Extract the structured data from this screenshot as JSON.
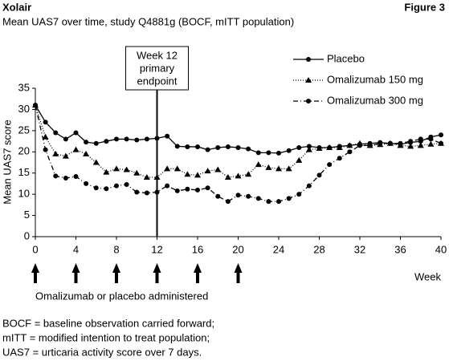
{
  "header": {
    "left": "Xolair",
    "right": "Figure 3"
  },
  "chart_data": {
    "type": "line",
    "title": "Mean UAS7 over time, study Q4881g (BOCF, mITT population)",
    "x_label": "Week",
    "y_label": "Mean UAS7 score",
    "x": [
      0,
      1,
      2,
      3,
      4,
      5,
      6,
      7,
      8,
      9,
      10,
      11,
      12,
      13,
      14,
      15,
      16,
      17,
      18,
      19,
      20,
      21,
      22,
      23,
      24,
      25,
      26,
      27,
      28,
      29,
      30,
      31,
      32,
      33,
      34,
      35,
      36,
      37,
      38,
      39,
      40
    ],
    "series": [
      {
        "name": "Placebo",
        "color": "#000000",
        "line_style": "solid",
        "marker": "circle",
        "values": [
          31,
          27,
          24.5,
          23,
          24.5,
          22.3,
          22,
          22.5,
          23,
          23,
          22.8,
          23,
          23.2,
          23.7,
          21.3,
          21.2,
          21.2,
          20.5,
          21,
          21.2,
          21,
          20.7,
          19.8,
          19.8,
          19.7,
          20.3,
          21,
          21.3,
          21,
          21,
          21.3,
          21.5,
          21.8,
          22,
          22.2,
          22,
          21.8,
          22.2,
          22.5,
          23.5,
          24
        ]
      },
      {
        "name": "Omalizumab 150 mg",
        "color": "#000000",
        "line_style": "dotted",
        "marker": "triangle",
        "values": [
          31,
          23.5,
          19.5,
          19,
          20.5,
          19.5,
          17.5,
          15.2,
          16,
          15.8,
          15,
          14,
          14,
          16,
          16,
          14.7,
          14.5,
          15.5,
          15.8,
          14,
          14.3,
          14.7,
          17,
          16.3,
          16,
          16,
          18,
          20.5,
          20.8,
          21,
          21,
          21.5,
          22,
          21.5,
          21.7,
          22,
          21.5,
          21.3,
          21.5,
          21.8,
          22
        ]
      },
      {
        "name": "Omalizumab 300 mg",
        "color": "#000000",
        "line_style": "dashdot",
        "marker": "circle",
        "values": [
          31,
          20.5,
          14.3,
          13.8,
          14.2,
          12.5,
          11.5,
          11.3,
          12,
          12.3,
          10.5,
          10.3,
          10.5,
          12,
          10.8,
          11.2,
          11,
          11.5,
          9.5,
          8.3,
          9.8,
          9.5,
          9,
          8.3,
          8.3,
          9,
          10,
          12,
          14.5,
          17,
          18.5,
          20,
          21.5,
          21.5,
          22,
          22,
          22,
          22.5,
          23,
          23,
          22
        ]
      }
    ],
    "xlim": [
      0,
      40
    ],
    "xticks": [
      0,
      4,
      8,
      12,
      16,
      20,
      24,
      28,
      32,
      36,
      40
    ],
    "ylim": [
      0,
      35
    ],
    "yticks": [
      0,
      5,
      10,
      15,
      20,
      25,
      30,
      35
    ],
    "grid": false,
    "annotation": {
      "x": 12,
      "lines": [
        "Week 12",
        "primary",
        "endpoint"
      ]
    },
    "dose_weeks": [
      0,
      4,
      8,
      12,
      16,
      20
    ],
    "dose_label": "Omalizumab or placebo administered"
  },
  "footnotes": [
    "BOCF = baseline observation carried forward;",
    "mITT = modified intention to treat population;",
    "UAS7 = urticaria activity score over 7 days."
  ]
}
